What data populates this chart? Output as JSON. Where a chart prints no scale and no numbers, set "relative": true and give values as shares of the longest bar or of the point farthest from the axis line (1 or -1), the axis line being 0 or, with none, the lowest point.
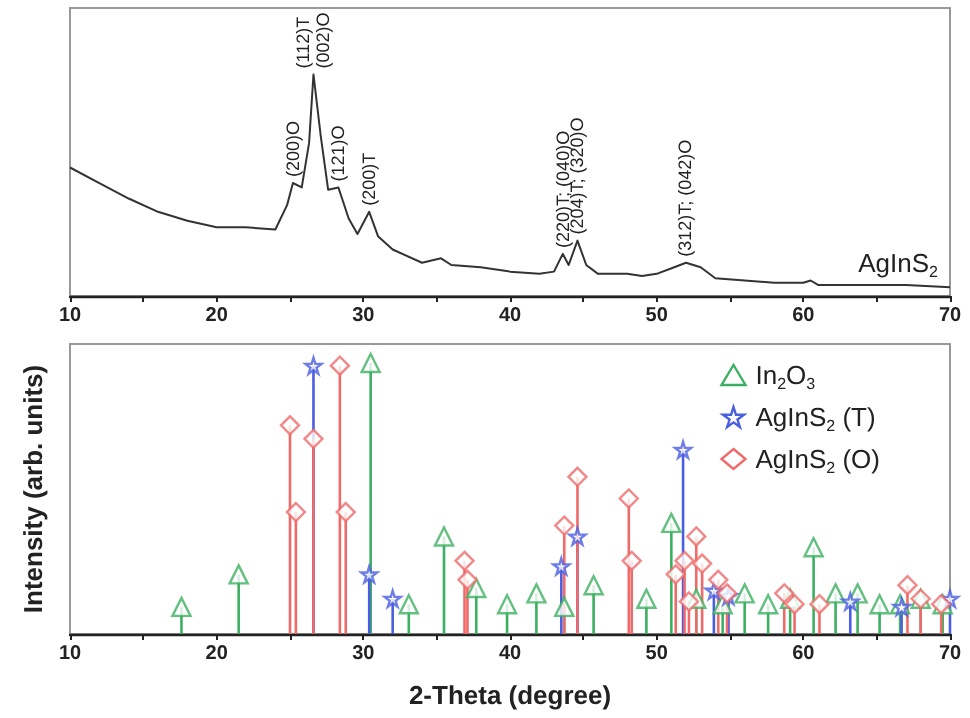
{
  "chart_data": [
    {
      "type": "line",
      "relative": true,
      "xlim": [
        10,
        70
      ],
      "xticks": [
        10,
        {
          "value": 15,
          "label": null
        },
        20,
        {
          "value": 25,
          "label": null
        },
        30,
        {
          "value": 35,
          "label": null
        },
        40,
        {
          "value": 45,
          "label": null
        },
        50,
        {
          "value": 55,
          "label": null
        },
        60,
        {
          "value": 65,
          "label": null
        },
        70
      ],
      "series": [
        {
          "color": "#333333",
          "x": [
            10,
            12,
            14,
            16,
            18,
            20,
            22,
            24,
            24.8,
            25.2,
            25.8,
            26.3,
            26.6,
            27.1,
            27.6,
            28.3,
            29,
            29.6,
            30.4,
            31,
            32,
            34,
            35.3,
            36,
            38,
            40,
            42,
            43,
            43.6,
            44,
            44.6,
            45.2,
            46,
            48,
            49,
            50,
            51.2,
            52,
            53,
            54,
            56,
            58,
            60,
            60.5,
            61,
            64,
            67,
            70
          ],
          "values": [
            0.58,
            0.51,
            0.44,
            0.38,
            0.34,
            0.31,
            0.31,
            0.3,
            0.41,
            0.51,
            0.49,
            0.69,
            1.0,
            0.72,
            0.48,
            0.49,
            0.35,
            0.28,
            0.38,
            0.27,
            0.21,
            0.15,
            0.17,
            0.14,
            0.13,
            0.11,
            0.1,
            0.11,
            0.19,
            0.14,
            0.25,
            0.14,
            0.1,
            0.1,
            0.09,
            0.1,
            0.13,
            0.15,
            0.13,
            0.08,
            0.07,
            0.06,
            0.06,
            0.07,
            0.05,
            0.05,
            0.05,
            0.04
          ]
        }
      ],
      "annotations": [
        {
          "text": "(200)O",
          "x": 25.2,
          "y": 0.51
        },
        {
          "text": "(112)T",
          "x": 26.6,
          "y": 1.0
        },
        {
          "text": "(002)O",
          "x": 26.6,
          "y": 1.0
        },
        {
          "text": "(121)O",
          "x": 28.3,
          "y": 0.49
        },
        {
          "text": "(200)T",
          "x": 30.4,
          "y": 0.38
        },
        {
          "text": "(220)T; (040)O",
          "x": 43.6,
          "y": 0.19
        },
        {
          "text": "(204)T; (320)O",
          "x": 44.6,
          "y": 0.25
        },
        {
          "text": "(312)T; (042)O",
          "x": 51.9,
          "y": 0.15
        },
        "AgInS$_{2}$"
      ]
    },
    {
      "type": "lollipop",
      "relative": true,
      "xlim": [
        10,
        70
      ],
      "xticks": [
        10,
        {
          "value": 15,
          "label": null
        },
        20,
        {
          "value": 25,
          "label": null
        },
        30,
        {
          "value": 35,
          "label": null
        },
        40,
        {
          "value": 45,
          "label": null
        },
        50,
        {
          "value": 55,
          "label": null
        },
        60,
        {
          "value": 65,
          "label": null
        },
        70
      ],
      "xlabel": "2-Theta (degree)",
      "ylabel": "Intensity (arb. units)",
      "legend": "top right",
      "series": [
        {
          "name": "In$_{2}$O$_{3}$",
          "color": "#3cb060",
          "marker": "triangle",
          "x": [
            17.6,
            21.5,
            30.5,
            33.1,
            35.5,
            37.7,
            39.8,
            41.8,
            43.7,
            45.7,
            49.3,
            51.0,
            52.7,
            54.5,
            56.0,
            57.6,
            59.1,
            60.7,
            62.2,
            63.7,
            65.2,
            66.6,
            68.0,
            69.5
          ],
          "values": [
            0.1,
            0.22,
            1.0,
            0.11,
            0.36,
            0.17,
            0.11,
            0.15,
            0.1,
            0.18,
            0.13,
            0.41,
            0.13,
            0.11,
            0.15,
            0.11,
            0.13,
            0.32,
            0.15,
            0.15,
            0.11,
            0.11,
            0.13,
            0.11
          ]
        },
        {
          "name": "AgInS$_{2}$ (T)",
          "color": "#4a5ee0",
          "marker": "star",
          "x": [
            26.6,
            30.4,
            32.0,
            43.5,
            44.6,
            51.8,
            53.9,
            54.9,
            63.2,
            66.7,
            70.0
          ],
          "values": [
            0.99,
            0.22,
            0.13,
            0.25,
            0.36,
            0.68,
            0.16,
            0.14,
            0.12,
            0.1,
            0.13
          ]
        },
        {
          "name": "AgInS$_{2}$ (O)",
          "color": "#f06a6a",
          "marker": "diamond",
          "x": [
            25.0,
            25.4,
            26.6,
            28.4,
            28.8,
            36.9,
            37.1,
            43.7,
            44.6,
            48.1,
            48.3,
            51.3,
            51.9,
            52.2,
            52.7,
            53.1,
            54.2,
            54.8,
            58.7,
            59.4,
            61.1,
            67.1,
            68.0,
            69.4
          ],
          "values": [
            0.77,
            0.45,
            0.72,
            0.99,
            0.45,
            0.27,
            0.2,
            0.4,
            0.58,
            0.5,
            0.27,
            0.22,
            0.27,
            0.12,
            0.36,
            0.26,
            0.2,
            0.15,
            0.15,
            0.11,
            0.11,
            0.18,
            0.13,
            0.11
          ]
        }
      ]
    }
  ]
}
